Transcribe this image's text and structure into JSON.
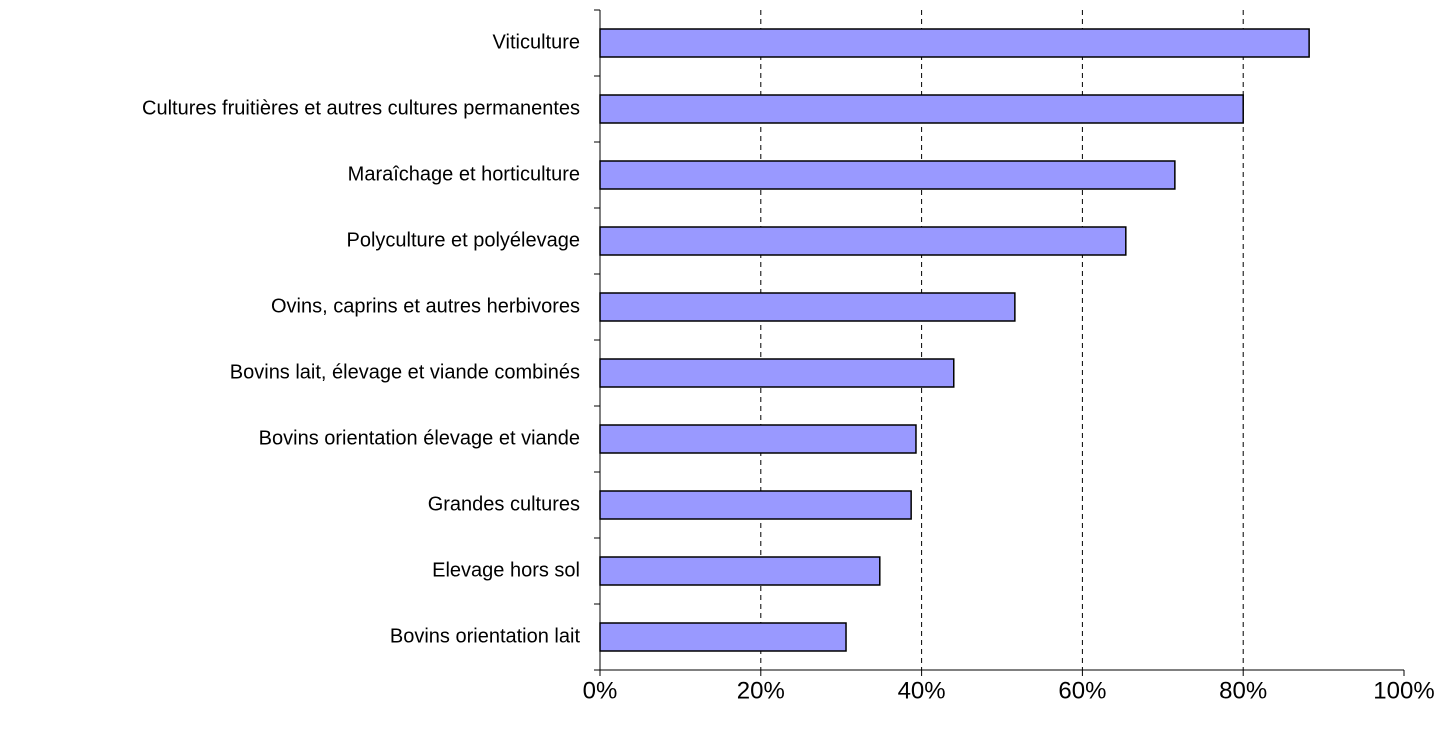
{
  "chart_data": {
    "type": "bar",
    "orientation": "horizontal",
    "categories": [
      "Viticulture",
      "Cultures fruitières et autres cultures permanentes",
      "Maraîchage et horticulture",
      "Polyculture et polyélevage",
      "Ovins, caprins et autres herbivores",
      "Bovins lait, élevage et viande combinés",
      "Bovins orientation élevage et viande",
      "Grandes cultures",
      "Elevage hors sol",
      "Bovins orientation lait"
    ],
    "values": [
      88.2,
      80,
      71.5,
      65.4,
      51.6,
      44,
      39.3,
      38.7,
      34.8,
      30.6
    ],
    "color": "#9999ff",
    "xlim": [
      0,
      100
    ],
    "xticks": [
      {
        "value": 0,
        "label": "0%"
      },
      {
        "value": 20,
        "label": "20%"
      },
      {
        "value": 40,
        "label": "40%"
      },
      {
        "value": 60,
        "label": "60%"
      },
      {
        "value": 80,
        "label": "80%"
      },
      {
        "value": 100,
        "label": "100%"
      }
    ],
    "grid": true
  }
}
